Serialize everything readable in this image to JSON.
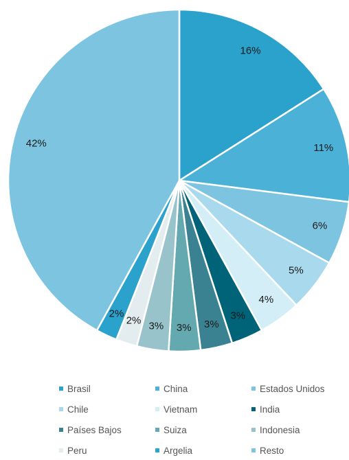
{
  "chart_data": {
    "type": "pie",
    "categories": [
      "Brasil",
      "China",
      "Estados Unidos",
      "Chile",
      "Vietnam",
      "India",
      "Países Bajos",
      "Suiza",
      "Indonesia",
      "Peru",
      "Argelia",
      "Resto"
    ],
    "values": [
      16,
      11,
      6,
      5,
      4,
      3,
      3,
      3,
      3,
      2,
      2,
      42
    ],
    "labels": [
      "16%",
      "11%",
      "6%",
      "5%",
      "4%",
      "3%",
      "3%",
      "3%",
      "3%",
      "2%",
      "2%",
      "42%"
    ],
    "colors": [
      "#2aa2cc",
      "#4cb1d7",
      "#7dc4e0",
      "#a8d9ec",
      "#d3eef6",
      "#006378",
      "#3a8291",
      "#64a8b0",
      "#98c3cb",
      "#e3ecee",
      "#2aa2cc",
      "#7dc4e0"
    ],
    "start_angle_deg": 0,
    "direction": "clockwise",
    "legend_position": "bottom",
    "title": ""
  }
}
